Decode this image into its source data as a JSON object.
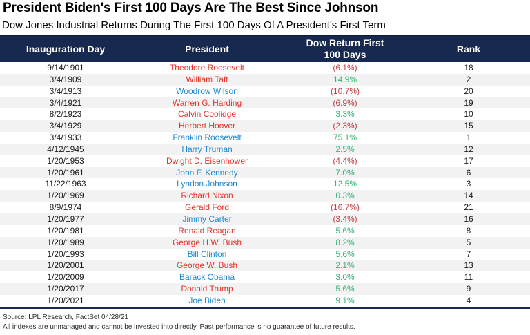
{
  "header": {
    "title": "President Biden's First 100 Days Are The Best Since Johnson",
    "subtitle": "Dow Jones Industrial Returns During The First 100 Days Of A President's First Term"
  },
  "table": {
    "header": {
      "col1": "Inauguration Day",
      "col2": "President",
      "col3_line1": "Dow Return First",
      "col3_line2": "100 Days",
      "col4": "Rank"
    },
    "rows": [
      {
        "date": "9/14/1901",
        "president": "Theodore Roosevelt",
        "party": "R",
        "return": "(6.1%)",
        "rank": "18"
      },
      {
        "date": "3/4/1909",
        "president": "William Taft",
        "party": "R",
        "return": "14.9%",
        "rank": "2"
      },
      {
        "date": "3/4/1913",
        "president": "Woodrow Wilson",
        "party": "D",
        "return": "(10.7%)",
        "rank": "20"
      },
      {
        "date": "3/4/1921",
        "president": "Warren G. Harding",
        "party": "R",
        "return": "(6.9%)",
        "rank": "19"
      },
      {
        "date": "8/2/1923",
        "president": "Calvin Coolidge",
        "party": "R",
        "return": "3.3%",
        "rank": "10"
      },
      {
        "date": "3/4/1929",
        "president": "Herbert Hoover",
        "party": "R",
        "return": "(2.3%)",
        "rank": "15"
      },
      {
        "date": "3/4/1933",
        "president": "Franklin Roosevelt",
        "party": "D",
        "return": "75.1%",
        "rank": "1"
      },
      {
        "date": "4/12/1945",
        "president": "Harry Truman",
        "party": "D",
        "return": "2.5%",
        "rank": "12"
      },
      {
        "date": "1/20/1953",
        "president": "Dwight D. Eisenhower",
        "party": "R",
        "return": "(4.4%)",
        "rank": "17"
      },
      {
        "date": "1/20/1961",
        "president": "John F. Kennedy",
        "party": "D",
        "return": "7.0%",
        "rank": "6"
      },
      {
        "date": "11/22/1963",
        "president": "Lyndon Johnson",
        "party": "D",
        "return": "12.5%",
        "rank": "3"
      },
      {
        "date": "1/20/1969",
        "president": "Richard Nixon",
        "party": "R",
        "return": "0.3%",
        "rank": "14"
      },
      {
        "date": "8/9/1974",
        "president": "Gerald Ford",
        "party": "R",
        "return": "(16.7%)",
        "rank": "21"
      },
      {
        "date": "1/20/1977",
        "president": "Jimmy Carter",
        "party": "D",
        "return": "(3.4%)",
        "rank": "16"
      },
      {
        "date": "1/20/1981",
        "president": "Ronald Reagan",
        "party": "R",
        "return": "5.6%",
        "rank": "8"
      },
      {
        "date": "1/20/1989",
        "president": "George H.W. Bush",
        "party": "R",
        "return": "8.2%",
        "rank": "5"
      },
      {
        "date": "1/20/1993",
        "president": "Bill Clinton",
        "party": "D",
        "return": "5.6%",
        "rank": "7"
      },
      {
        "date": "1/20/2001",
        "president": "George W. Bush",
        "party": "R",
        "return": "2.1%",
        "rank": "13"
      },
      {
        "date": "1/20/2009",
        "president": "Barack Obama",
        "party": "D",
        "return": "3.0%",
        "rank": "11"
      },
      {
        "date": "1/20/2017",
        "president": "Donald Trump",
        "party": "R",
        "return": "5.6%",
        "rank": "9"
      },
      {
        "date": "1/20/2021",
        "president": "Joe Biden",
        "party": "D",
        "return": "9.1%",
        "rank": "4"
      }
    ]
  },
  "footer": {
    "source": "Source: LPL Research, FactSet 04/28/21",
    "disclaimer": "All indexes are unmanaged and cannot be invested into directly. Past performance is no guarantee of future results."
  },
  "colors": {
    "navy": "#17294F",
    "stripe": "#F2F2F2",
    "republican": "#E5332A",
    "democrat": "#1E88D2",
    "positive": "#33B573",
    "negative": "#BE4043"
  },
  "chart_data": {
    "type": "table",
    "title": "President Biden's First 100 Days Are The Best Since Johnson",
    "subtitle": "Dow Jones Industrial Returns During The First 100 Days Of A President's First Term",
    "columns": [
      "Inauguration Day",
      "President",
      "Dow Return First 100 Days",
      "Rank"
    ],
    "rows": [
      [
        "9/14/1901",
        "Theodore Roosevelt",
        -6.1,
        18
      ],
      [
        "3/4/1909",
        "William Taft",
        14.9,
        2
      ],
      [
        "3/4/1913",
        "Woodrow Wilson",
        -10.7,
        20
      ],
      [
        "3/4/1921",
        "Warren G. Harding",
        -6.9,
        19
      ],
      [
        "8/2/1923",
        "Calvin Coolidge",
        3.3,
        10
      ],
      [
        "3/4/1929",
        "Herbert Hoover",
        -2.3,
        15
      ],
      [
        "3/4/1933",
        "Franklin Roosevelt",
        75.1,
        1
      ],
      [
        "4/12/1945",
        "Harry Truman",
        2.5,
        12
      ],
      [
        "1/20/1953",
        "Dwight D. Eisenhower",
        -4.4,
        17
      ],
      [
        "1/20/1961",
        "John F. Kennedy",
        7.0,
        6
      ],
      [
        "11/22/1963",
        "Lyndon Johnson",
        12.5,
        3
      ],
      [
        "1/20/1969",
        "Richard Nixon",
        0.3,
        14
      ],
      [
        "8/9/1974",
        "Gerald Ford",
        -16.7,
        21
      ],
      [
        "1/20/1977",
        "Jimmy Carter",
        -3.4,
        16
      ],
      [
        "1/20/1981",
        "Ronald Reagan",
        5.6,
        8
      ],
      [
        "1/20/1989",
        "George H.W. Bush",
        8.2,
        5
      ],
      [
        "1/20/1993",
        "Bill Clinton",
        5.6,
        7
      ],
      [
        "1/20/2001",
        "George W. Bush",
        2.1,
        13
      ],
      [
        "1/20/2009",
        "Barack Obama",
        3.0,
        11
      ],
      [
        "1/20/2017",
        "Donald Trump",
        5.6,
        9
      ],
      [
        "1/20/2021",
        "Joe Biden",
        9.1,
        4
      ]
    ],
    "notes": "Negative returns shown in parentheses; Republicans in red, Democrats in blue; positive returns green, negative returns dark red.",
    "source": "Source: LPL Research, FactSet 04/28/21"
  }
}
